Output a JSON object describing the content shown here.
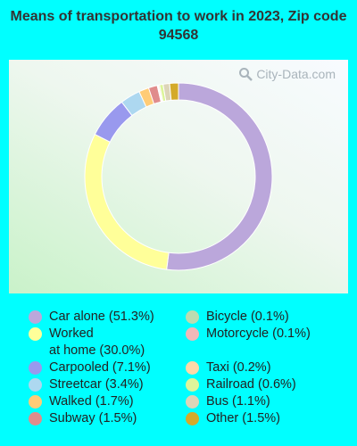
{
  "title": "Means of transportation to work in 2023, Zip code 94568",
  "watermark": "City-Data.com",
  "chart_data": {
    "type": "pie",
    "style": "donut",
    "title": "Means of transportation to work in 2023, Zip code 94568",
    "legend_placement": "bottom",
    "series": [
      {
        "name": "Car alone",
        "value": 51.3,
        "color": "#bba7db"
      },
      {
        "name": "Worked at home",
        "value": 30.0,
        "color": "#ffff99"
      },
      {
        "name": "Carpooled",
        "value": 7.1,
        "color": "#9999ee"
      },
      {
        "name": "Streetcar",
        "value": 3.4,
        "color": "#add8f0"
      },
      {
        "name": "Walked",
        "value": 1.7,
        "color": "#ffcc77"
      },
      {
        "name": "Subway",
        "value": 1.5,
        "color": "#e08c8c"
      },
      {
        "name": "Bicycle",
        "value": 0.1,
        "color": "#bcdcb0"
      },
      {
        "name": "Motorcycle",
        "value": 0.1,
        "color": "#f0b8b8"
      },
      {
        "name": "Taxi",
        "value": 0.2,
        "color": "#ffd9a8"
      },
      {
        "name": "Railroad",
        "value": 0.6,
        "color": "#ddf59a"
      },
      {
        "name": "Bus",
        "value": 1.1,
        "color": "#ddd5b8"
      },
      {
        "name": "Other",
        "value": 1.5,
        "color": "#d4aa2a"
      }
    ]
  },
  "legend": {
    "left": [
      {
        "label": "Car alone (51.3%)",
        "color": "#bba7db"
      },
      {
        "label": "Worked\nat home (30.0%)",
        "color": "#ffff99"
      },
      {
        "label": "Carpooled (7.1%)",
        "color": "#9999ee"
      },
      {
        "label": "Streetcar (3.4%)",
        "color": "#add8f0"
      },
      {
        "label": "Walked (1.7%)",
        "color": "#ffcc77"
      },
      {
        "label": "Subway (1.5%)",
        "color": "#e08c8c"
      }
    ],
    "right": [
      {
        "label": "Bicycle (0.1%)",
        "color": "#bcdcb0"
      },
      {
        "label": "Motorcycle (0.1%)",
        "color": "#f0b8b8"
      },
      {
        "label": "Taxi (0.2%)",
        "color": "#ffd9a8"
      },
      {
        "label": "Railroad (0.6%)",
        "color": "#ddf59a"
      },
      {
        "label": "Bus (1.1%)",
        "color": "#ddd5b8"
      },
      {
        "label": "Other (1.5%)",
        "color": "#d4aa2a"
      }
    ]
  }
}
